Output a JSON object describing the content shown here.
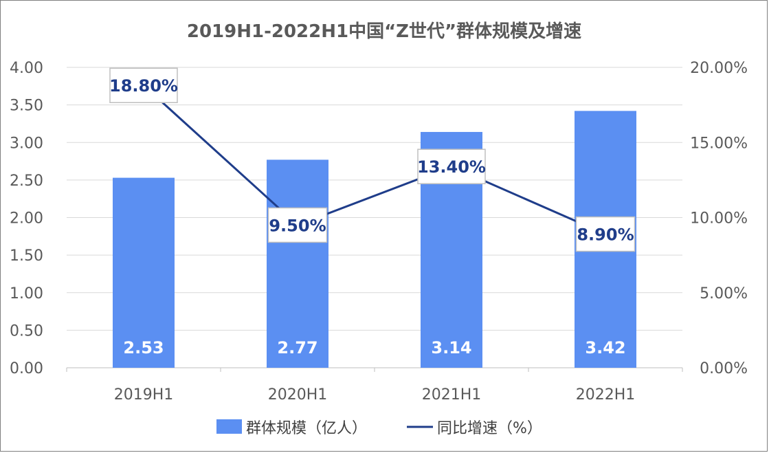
{
  "chart_data": {
    "type": "bar",
    "title": "2019H1-2022H1中国“Z世代”群体规模及增速",
    "categories": [
      "2019H1",
      "2020H1",
      "2021H1",
      "2022H1"
    ],
    "series": [
      {
        "name": "群体规模（亿人）",
        "type": "bar",
        "axis": "left",
        "values": [
          2.53,
          2.77,
          3.14,
          3.42
        ],
        "labels": [
          "2.53",
          "2.77",
          "3.14",
          "3.42"
        ]
      },
      {
        "name": "同比增速（%）",
        "type": "line",
        "axis": "right",
        "values": [
          18.8,
          9.5,
          13.4,
          8.9
        ],
        "labels": [
          "18.80%",
          "9.50%",
          "13.40%",
          "8.90%"
        ]
      }
    ],
    "y_left": {
      "ylim": [
        0,
        4
      ],
      "ticks": [
        "0.00",
        "0.50",
        "1.00",
        "1.50",
        "2.00",
        "2.50",
        "3.00",
        "3.50",
        "4.00"
      ]
    },
    "y_right": {
      "ylim": [
        0,
        20
      ],
      "ticks": [
        "0.00%",
        "5.00%",
        "10.00%",
        "15.00%",
        "20.00%"
      ]
    },
    "grid": true,
    "legend": "bottom",
    "colors": {
      "bar": "#5b8ff2",
      "line": "#1f3d8a",
      "grid": "#d9d9d9"
    }
  }
}
